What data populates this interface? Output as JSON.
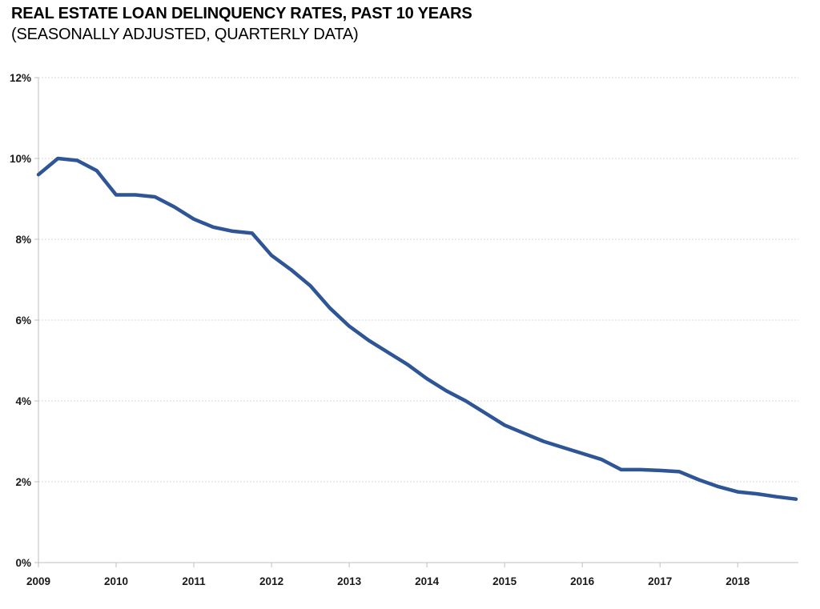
{
  "header": {
    "title": "REAL ESTATE LOAN DELINQUENCY RATES, PAST 10 YEARS",
    "subtitle": "(SEASONALLY ADJUSTED, QUARTERLY DATA)"
  },
  "chart_data": {
    "type": "line",
    "title": "REAL ESTATE LOAN DELINQUENCY RATES, PAST 10 YEARS",
    "subtitle": "(SEASONALLY ADJUSTED, QUARTERLY DATA)",
    "categories": [
      "2009 Q1",
      "2009 Q2",
      "2009 Q3",
      "2009 Q4",
      "2010 Q1",
      "2010 Q2",
      "2010 Q3",
      "2010 Q4",
      "2011 Q1",
      "2011 Q2",
      "2011 Q3",
      "2011 Q4",
      "2012 Q1",
      "2012 Q2",
      "2012 Q3",
      "2012 Q4",
      "2013 Q1",
      "2013 Q2",
      "2013 Q3",
      "2013 Q4",
      "2014 Q1",
      "2014 Q2",
      "2014 Q3",
      "2014 Q4",
      "2015 Q1",
      "2015 Q2",
      "2015 Q3",
      "2015 Q4",
      "2016 Q1",
      "2016 Q2",
      "2016 Q3",
      "2016 Q4",
      "2017 Q1",
      "2017 Q2",
      "2017 Q3",
      "2017 Q4",
      "2018 Q1",
      "2018 Q2",
      "2018 Q3",
      "2018 Q4"
    ],
    "values": [
      9.6,
      10.0,
      9.95,
      9.7,
      9.1,
      9.1,
      9.05,
      8.8,
      8.5,
      8.3,
      8.2,
      8.15,
      7.6,
      7.25,
      6.85,
      6.3,
      5.85,
      5.5,
      5.2,
      4.9,
      4.55,
      4.25,
      4.0,
      3.7,
      3.4,
      3.2,
      3.0,
      2.85,
      2.7,
      2.55,
      2.3,
      2.3,
      2.28,
      2.25,
      2.05,
      1.88,
      1.75,
      1.7,
      1.63,
      1.57
    ],
    "x_tick_labels": [
      "2009",
      "2010",
      "2011",
      "2012",
      "2013",
      "2014",
      "2015",
      "2016",
      "2017",
      "2018"
    ],
    "y_tick_labels": [
      "0%",
      "2%",
      "4%",
      "6%",
      "8%",
      "10%",
      "12%"
    ],
    "ylim": [
      0,
      12
    ],
    "xlabel": "",
    "ylabel": "",
    "legend": "none",
    "grid": "horizontal-dotted",
    "line_color": "#2E5596",
    "gridline_color": "#D9D9D9",
    "axis_color": "#BFBFBF",
    "label_color": "#1A1A1A"
  }
}
